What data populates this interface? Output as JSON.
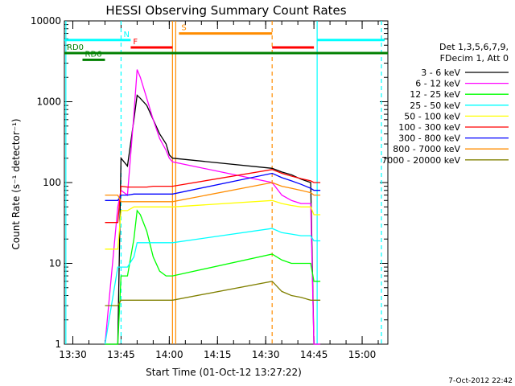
{
  "chart_data": {
    "type": "line",
    "title": "HESSI Observing Summary Count Rates",
    "xlabel": "Start Time (01-Oct-12 13:27:22)",
    "ylabel": "Count Rate (s⁻¹ detector⁻¹)",
    "footer": "7-Oct-2012 22:42",
    "yscale": "log",
    "xlim": [
      "13:27:22",
      "15:08:00"
    ],
    "ylim": [
      1,
      10000
    ],
    "x_ticks": [
      "13:30",
      "13:45",
      "14:00",
      "14:15",
      "14:30",
      "14:45",
      "15:00"
    ],
    "y_ticks": [
      "1",
      "10",
      "100",
      "1000",
      "10000"
    ],
    "legend_header": [
      "Det 1,3,5,6,7,9,",
      "FDecim 1, Att 0"
    ],
    "legend_position": "right",
    "series": [
      {
        "name": "3 - 6 keV",
        "color": "#000000",
        "x": [
          "13:40",
          "13:44",
          "13:45",
          "13:47",
          "13:49",
          "13:50",
          "13:51",
          "13:53",
          "13:55",
          "13:57",
          "13:59",
          "14:00",
          "14:01",
          "14:32",
          "14:35",
          "14:38",
          "14:41",
          "14:44",
          "14:45",
          "14:46",
          "14:47"
        ],
        "y": [
          1,
          1,
          200,
          160,
          600,
          1200,
          1100,
          900,
          600,
          400,
          300,
          220,
          200,
          150,
          135,
          125,
          110,
          100,
          1,
          1,
          1
        ]
      },
      {
        "name": "6 - 12 keV",
        "color": "#ff00ff",
        "x": [
          "13:40",
          "13:44",
          "13:45",
          "13:47",
          "13:49",
          "13:50",
          "13:51",
          "13:53",
          "13:55",
          "13:57",
          "13:59",
          "14:00",
          "14:01",
          "14:32",
          "14:35",
          "14:38",
          "14:41",
          "14:44",
          "14:45",
          "14:46",
          "14:47"
        ],
        "y": [
          1,
          50,
          80,
          70,
          700,
          2500,
          2000,
          1100,
          600,
          350,
          250,
          200,
          180,
          100,
          70,
          60,
          55,
          55,
          1,
          1,
          1
        ]
      },
      {
        "name": "12 - 25 keV",
        "color": "#00ff00",
        "x": [
          "13:40",
          "13:44",
          "13:45",
          "13:47",
          "13:49",
          "13:50",
          "13:51",
          "13:53",
          "13:55",
          "13:57",
          "13:59",
          "14:00",
          "14:01",
          "14:32",
          "14:35",
          "14:38",
          "14:41",
          "14:44",
          "14:45",
          "14:46",
          "14:47"
        ],
        "y": [
          1,
          1,
          7,
          7,
          20,
          45,
          40,
          25,
          12,
          8,
          7,
          7,
          7,
          13,
          11,
          10,
          10,
          10,
          6,
          6,
          6
        ]
      },
      {
        "name": "25 - 50 keV",
        "color": "#00ffff",
        "x": [
          "13:40",
          "13:44",
          "13:45",
          "13:47",
          "13:49",
          "13:50",
          "13:51",
          "13:53",
          "13:55",
          "13:57",
          "13:59",
          "14:00",
          "14:01",
          "14:32",
          "14:35",
          "14:38",
          "14:41",
          "14:44",
          "14:45",
          "14:46",
          "14:47"
        ],
        "y": [
          1,
          9,
          9,
          9,
          12,
          18,
          18,
          18,
          18,
          18,
          18,
          18,
          18,
          27,
          24,
          23,
          22,
          22,
          19,
          19,
          19
        ]
      },
      {
        "name": "50 - 100 keV",
        "color": "#ffff00",
        "x": [
          "13:40",
          "13:44",
          "13:45",
          "13:47",
          "13:49",
          "13:50",
          "13:51",
          "13:53",
          "13:55",
          "13:57",
          "13:59",
          "14:00",
          "14:01",
          "14:32",
          "14:35",
          "14:38",
          "14:41",
          "14:44",
          "14:45",
          "14:46",
          "14:47"
        ],
        "y": [
          15,
          15,
          45,
          45,
          50,
          50,
          50,
          50,
          50,
          50,
          50,
          50,
          50,
          60,
          55,
          52,
          50,
          50,
          40,
          40,
          40
        ]
      },
      {
        "name": "100 - 300 keV",
        "color": "#ff0000",
        "x": [
          "13:40",
          "13:44",
          "13:45",
          "13:47",
          "13:49",
          "13:50",
          "13:51",
          "13:53",
          "13:55",
          "13:57",
          "13:59",
          "14:00",
          "14:01",
          "14:32",
          "14:35",
          "14:38",
          "14:41",
          "14:44",
          "14:45",
          "14:46",
          "14:47"
        ],
        "y": [
          32,
          32,
          90,
          88,
          88,
          88,
          88,
          88,
          90,
          90,
          90,
          90,
          90,
          145,
          130,
          120,
          112,
          105,
          100,
          100,
          100
        ]
      },
      {
        "name": "300 - 800 keV",
        "color": "#0000ff",
        "x": [
          "13:40",
          "13:44",
          "13:45",
          "13:47",
          "13:49",
          "13:50",
          "13:51",
          "13:53",
          "13:55",
          "13:57",
          "13:59",
          "14:00",
          "14:01",
          "14:32",
          "14:35",
          "14:38",
          "14:41",
          "14:44",
          "14:45",
          "14:46",
          "14:47"
        ],
        "y": [
          60,
          60,
          70,
          70,
          72,
          72,
          72,
          72,
          72,
          72,
          72,
          72,
          72,
          130,
          115,
          105,
          95,
          85,
          80,
          80,
          80
        ]
      },
      {
        "name": "800 - 7000 keV",
        "color": "#ff8c00",
        "x": [
          "13:40",
          "13:44",
          "13:45",
          "13:47",
          "13:49",
          "13:50",
          "13:51",
          "13:53",
          "13:55",
          "13:57",
          "13:59",
          "14:00",
          "14:01",
          "14:32",
          "14:35",
          "14:38",
          "14:41",
          "14:44",
          "14:45",
          "14:46",
          "14:47"
        ],
        "y": [
          70,
          70,
          58,
          58,
          58,
          58,
          58,
          58,
          58,
          58,
          58,
          58,
          58,
          100,
          90,
          85,
          80,
          75,
          70,
          70,
          70
        ]
      },
      {
        "name": "7000 - 20000 keV",
        "color": "#808000",
        "x": [
          "13:40",
          "13:44",
          "13:45",
          "13:47",
          "13:49",
          "13:50",
          "13:51",
          "13:53",
          "13:55",
          "13:57",
          "13:59",
          "14:00",
          "14:01",
          "14:32",
          "14:35",
          "14:38",
          "14:41",
          "14:44",
          "14:45",
          "14:46",
          "14:47"
        ],
        "y": [
          3,
          3,
          3.5,
          3.5,
          3.5,
          3.5,
          3.5,
          3.5,
          3.5,
          3.5,
          3.5,
          3.5,
          3.5,
          6,
          4.5,
          4,
          3.8,
          3.5,
          3.5,
          3.5,
          3.5
        ]
      }
    ],
    "flag_bars": [
      {
        "label": "",
        "color": "#00ffff",
        "y": 5800,
        "x": [
          "13:27:22",
          "13:45"
        ]
      },
      {
        "label": "N",
        "color": "#00ffff",
        "y": 5800,
        "x": [
          "13:45",
          "13:48"
        ]
      },
      {
        "label": "F",
        "color": "#ff0000",
        "y": 4700,
        "x": [
          "13:48",
          "14:01"
        ]
      },
      {
        "label": "S",
        "color": "#ff8c00",
        "y": 7000,
        "x": [
          "14:03",
          "14:32"
        ]
      },
      {
        "label": "",
        "color": "#ff0000",
        "y": 4700,
        "x": [
          "14:32",
          "14:45"
        ]
      },
      {
        "label": "",
        "color": "#00ffff",
        "y": 5800,
        "x": [
          "14:46",
          "15:07"
        ]
      },
      {
        "label": "RD0",
        "color": "#008000",
        "y": 4000,
        "x": [
          "13:27:22",
          "15:08"
        ]
      },
      {
        "label": "RD6",
        "color": "#008000",
        "y": 3300,
        "x": [
          "13:33",
          "13:40"
        ]
      }
    ],
    "vertical_markers": [
      {
        "x": "13:27:50",
        "color": "#00ffff",
        "style": "solid"
      },
      {
        "x": "13:45",
        "color": "#00ffff",
        "style": "dashed"
      },
      {
        "x": "14:01",
        "color": "#ff8c00",
        "style": "solid"
      },
      {
        "x": "14:02",
        "color": "#ff8c00",
        "style": "solid"
      },
      {
        "x": "14:32",
        "color": "#ff8c00",
        "style": "dashed"
      },
      {
        "x": "14:46",
        "color": "#00ffff",
        "style": "solid"
      },
      {
        "x": "15:06",
        "color": "#00ffff",
        "style": "dashed"
      }
    ]
  }
}
